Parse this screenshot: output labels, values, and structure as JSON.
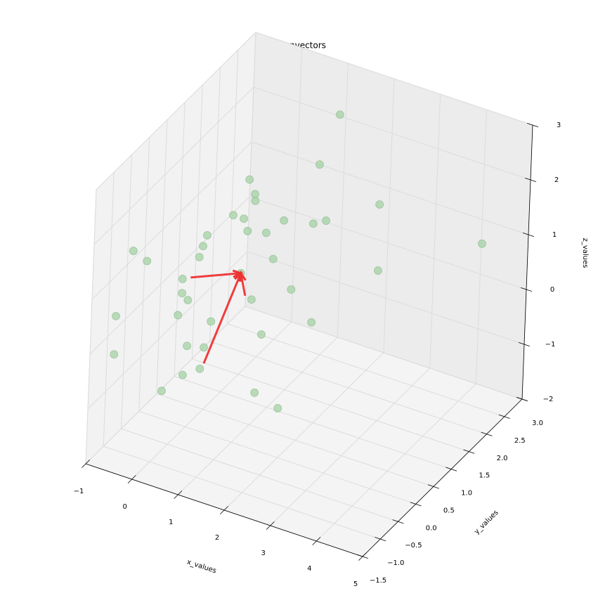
{
  "chart_data": {
    "type": "scatter3d",
    "title": "Eigenvectors",
    "x_label": "x_values",
    "y_label": "y_values",
    "z_label": "z_values",
    "x": [
      1.6,
      1.57,
      0.63,
      0.76,
      0.77,
      2.52,
      0.31,
      0.54,
      1.4,
      2.03,
      2.3,
      -0.23,
      0.63,
      1.03,
      4.38,
      -0.31,
      -0.52,
      -0.38,
      -0.22,
      1.2,
      2.54,
      0.52,
      0.19,
      1.61,
      0.19,
      0.32,
      0.77,
      -0.84,
      0.12,
      -0.08,
      2.07,
      1.01,
      0.34,
      -0.21,
      -0.85,
      -0.28,
      0.27,
      0.2,
      0.91,
      1.42
    ],
    "y": [
      2.0,
      1.5,
      0.75,
      0.75,
      0.75,
      2.0,
      0.75,
      0.75,
      0.75,
      0.75,
      0.75,
      0.75,
      0.75,
      0.75,
      2.5,
      0.75,
      -1.0,
      0.75,
      -1.0,
      0.75,
      2.0,
      0.75,
      -0.5,
      0.75,
      -0.5,
      -0.5,
      0.75,
      -1.0,
      -0.5,
      0.75,
      0.75,
      0.75,
      -0.5,
      0.75,
      -1.0,
      0.75,
      -0.5,
      -1.0,
      0.75,
      0.75
    ],
    "z": [
      2.87,
      2.27,
      2.21,
      1.98,
      1.86,
      1.49,
      1.47,
      1.47,
      1.68,
      1.8,
      1.93,
      0.95,
      1.27,
      1.35,
      0.98,
      0.73,
      1.7,
      0.51,
      1.6,
      0.92,
      0.29,
      0.47,
      1.07,
      0.48,
      0.81,
      0.72,
      0.06,
      0.42,
      0.39,
      -0.58,
      0.01,
      -0.51,
      -0.11,
      -1.09,
      -0.28,
      -1.5,
      -0.66,
      -0.65,
      -1.6,
      -1.74
    ],
    "color": "#a9d3a9",
    "arrows": [
      {
        "start": [
          -0.55,
          0.75,
          0.09
        ],
        "end": [
          0.52,
          0.75,
          0.47
        ]
      },
      {
        "start": [
          -0.2,
          0.75,
          -1.38
        ],
        "end": [
          0.52,
          0.75,
          0.47
        ]
      },
      {
        "start": [
          0.63,
          0.75,
          0.09
        ],
        "end": [
          0.52,
          0.75,
          0.47
        ]
      }
    ],
    "arrow_color": "#ee3333",
    "xlim": [
      -1,
      5
    ],
    "ylim": [
      -1.5,
      3
    ],
    "zlim": [
      -2,
      3
    ],
    "xticks": [
      {
        "value": -1,
        "label": "−1"
      },
      0,
      1,
      2,
      3,
      4,
      5
    ],
    "yticks": [
      {
        "value": -1.5,
        "label": "−1.5"
      },
      {
        "value": -1,
        "label": "−1.0"
      },
      {
        "value": -0.5,
        "label": "−0.5"
      },
      {
        "value": 0,
        "label": "0.0"
      },
      0.5,
      {
        "value": 1,
        "label": "1.0"
      },
      1.5,
      {
        "value": 2,
        "label": "2.0"
      },
      2.5,
      {
        "value": 3,
        "label": "3.0"
      }
    ],
    "zticks": [
      {
        "value": -2,
        "label": "−2"
      },
      {
        "value": -1,
        "label": "−1"
      },
      0,
      1,
      2,
      3
    ],
    "grid": true
  }
}
